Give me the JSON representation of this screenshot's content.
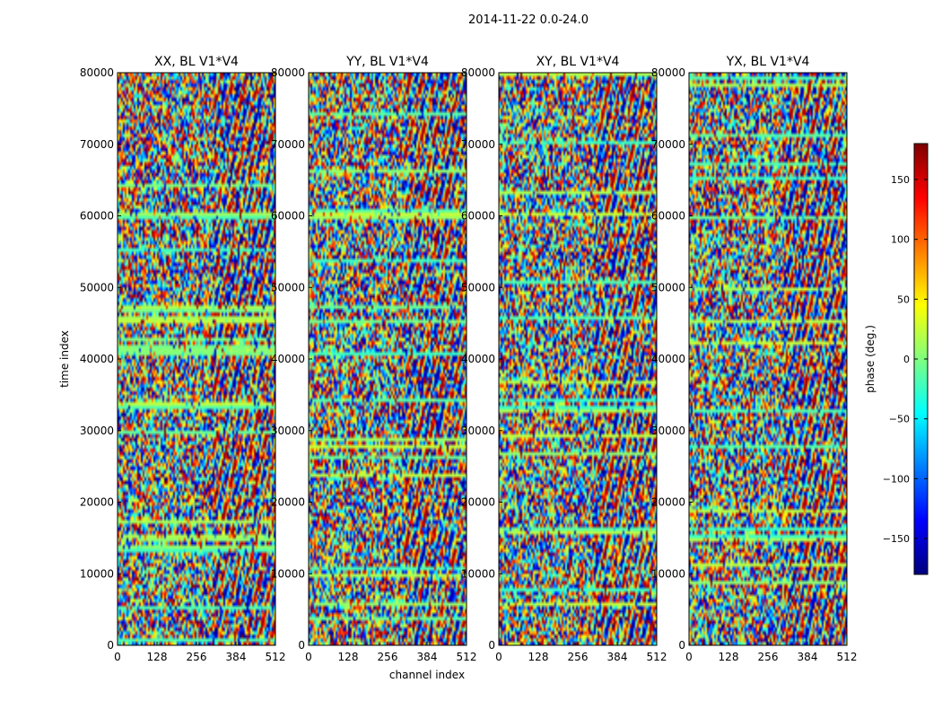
{
  "figure": {
    "suptitle": "2014-11-22 0.0-24.0"
  },
  "chart_data": {
    "type": "heatmap",
    "xlabel": "channel index",
    "ylabel": "time index",
    "xlim": [
      0,
      512
    ],
    "ylim": [
      0,
      80000
    ],
    "x_ticks": [
      0,
      128,
      256,
      384,
      512
    ],
    "y_ticks": [
      0,
      10000,
      20000,
      30000,
      40000,
      50000,
      60000,
      70000,
      80000
    ],
    "panels": [
      {
        "title": "XX, BL V1*V4"
      },
      {
        "title": "YY, BL V1*V4"
      },
      {
        "title": "XY, BL V1*V4"
      },
      {
        "title": "YX, BL V1*V4"
      }
    ],
    "colorbar": {
      "label": "phase (deg.)",
      "range": [
        -180,
        180
      ],
      "ticks": [
        -150,
        -100,
        -50,
        0,
        50,
        100,
        150
      ],
      "tick_labels": [
        "−150",
        "−100",
        "−50",
        "0",
        "50",
        "100",
        "150"
      ],
      "colormap": [
        "#00007f",
        "#0000ff",
        "#007fff",
        "#00ffff",
        "#7fff7f",
        "#ffff00",
        "#ff7f00",
        "#ff0000",
        "#7f0000"
      ]
    }
  }
}
